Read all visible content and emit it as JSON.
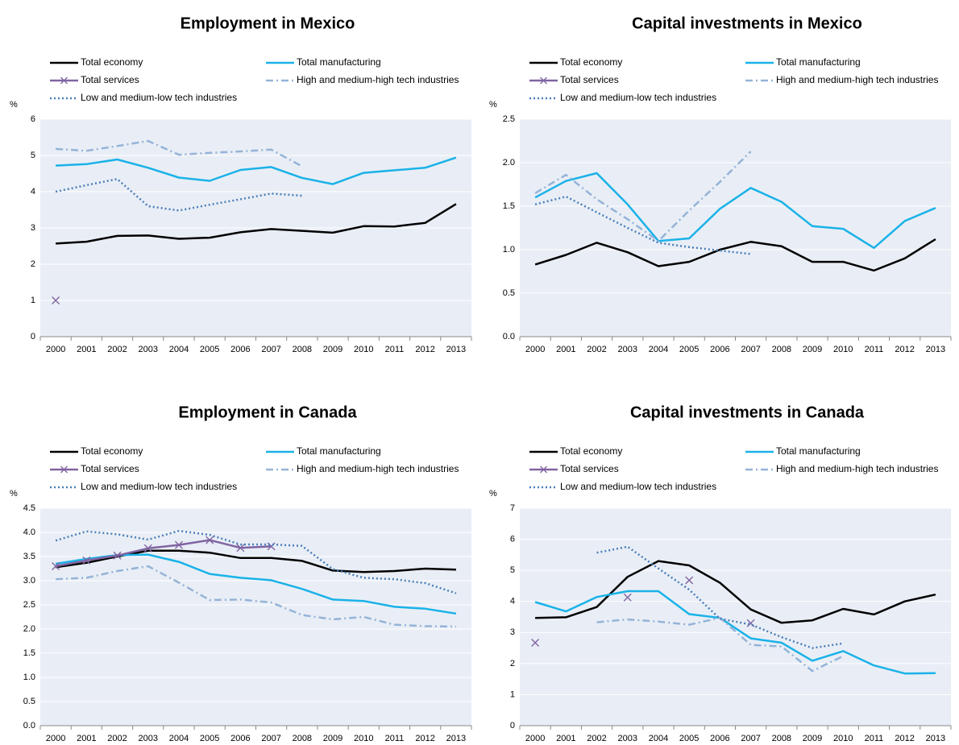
{
  "chart_data": [
    {
      "type": "line",
      "title": "Employment in Mexico",
      "y_label": "%",
      "categories": [
        "2000",
        "2001",
        "2002",
        "2003",
        "2004",
        "2005",
        "2006",
        "2007",
        "2008",
        "2009",
        "2010",
        "2011",
        "2012",
        "2013"
      ],
      "ylim": [
        0,
        6
      ],
      "yticks": [
        0,
        1,
        2,
        3,
        4,
        5,
        6
      ],
      "grid": true,
      "series": [
        {
          "name": "Total economy",
          "color": "#000000",
          "dash": "solid",
          "values": [
            2.57,
            2.62,
            2.78,
            2.79,
            2.7,
            2.73,
            2.88,
            2.97,
            2.92,
            2.87,
            3.05,
            3.04,
            3.14,
            3.66
          ]
        },
        {
          "name": "Total manufacturing",
          "color": "#1ab2e8",
          "dash": "solid",
          "values": [
            4.72,
            4.76,
            4.89,
            4.66,
            4.39,
            4.3,
            4.6,
            4.68,
            4.38,
            4.21,
            4.52,
            4.59,
            4.66,
            4.94
          ]
        },
        {
          "name": "Total services",
          "color": "#8064a2",
          "dash": "solid",
          "marker": "x",
          "values": [
            1.0,
            null,
            null,
            null,
            null,
            null,
            null,
            null,
            null,
            null,
            null,
            null,
            null,
            null
          ]
        },
        {
          "name": "High and medium-high tech industries",
          "color": "#95b3d7",
          "dash": "dashdot",
          "values": [
            5.18,
            5.13,
            5.26,
            5.4,
            5.02,
            5.07,
            5.11,
            5.16,
            4.7,
            null,
            null,
            null,
            null,
            null
          ]
        },
        {
          "name": "Low and medium-low tech industries",
          "color": "#4a7ebb",
          "dash": "dot",
          "values": [
            4.0,
            4.18,
            4.35,
            3.6,
            3.48,
            3.64,
            3.79,
            3.95,
            3.89,
            null,
            null,
            null,
            null,
            null
          ]
        }
      ]
    },
    {
      "type": "line",
      "title": "Capital investments in Mexico",
      "y_label": "%",
      "categories": [
        "2000",
        "2001",
        "2002",
        "2003",
        "2004",
        "2005",
        "2006",
        "2007",
        "2008",
        "2009",
        "2010",
        "2011",
        "2012",
        "2013"
      ],
      "ylim": [
        0,
        2.5
      ],
      "yticks": [
        {
          "value": 0,
          "label": "0.0"
        },
        0.5,
        {
          "value": 1,
          "label": "1.0"
        },
        1.5,
        {
          "value": 2,
          "label": "2.0"
        },
        2.5
      ],
      "grid": true,
      "series": [
        {
          "name": "Total economy",
          "color": "#000000",
          "dash": "solid",
          "values": [
            0.83,
            0.94,
            1.08,
            0.97,
            0.81,
            0.86,
            1.0,
            1.09,
            1.04,
            0.86,
            0.86,
            0.76,
            0.9,
            1.12
          ]
        },
        {
          "name": "Total manufacturing",
          "color": "#1ab2e8",
          "dash": "solid",
          "values": [
            1.6,
            1.79,
            1.88,
            1.52,
            1.1,
            1.13,
            1.47,
            1.71,
            1.55,
            1.27,
            1.24,
            1.02,
            1.33,
            1.48
          ]
        },
        {
          "name": "Total services",
          "color": "#8064a2",
          "dash": "solid",
          "marker": "x",
          "values": [
            null,
            null,
            null,
            null,
            null,
            null,
            null,
            null,
            null,
            null,
            null,
            null,
            null,
            null
          ]
        },
        {
          "name": "High and medium-high tech industries",
          "color": "#95b3d7",
          "dash": "dashdot",
          "values": [
            1.65,
            1.86,
            1.58,
            1.35,
            1.1,
            1.45,
            1.78,
            2.13,
            null,
            null,
            null,
            null,
            null,
            null
          ]
        },
        {
          "name": "Low and medium-low tech industries",
          "color": "#4a7ebb",
          "dash": "dot",
          "values": [
            1.52,
            1.61,
            1.43,
            1.25,
            1.08,
            1.03,
            0.99,
            0.95,
            null,
            null,
            null,
            null,
            null,
            null
          ]
        }
      ]
    },
    {
      "type": "line",
      "title": "Employment in Canada",
      "y_label": "%",
      "categories": [
        "2000",
        "2001",
        "2002",
        "2003",
        "2004",
        "2005",
        "2006",
        "2007",
        "2008",
        "2009",
        "2010",
        "2011",
        "2012",
        "2013"
      ],
      "ylim": [
        0,
        4.5
      ],
      "yticks": [
        {
          "value": 0,
          "label": "0.0"
        },
        0.5,
        {
          "value": 1,
          "label": "1.0"
        },
        1.5,
        {
          "value": 2,
          "label": "2.0"
        },
        2.5,
        {
          "value": 3,
          "label": "3.0"
        },
        3.5,
        {
          "value": 4,
          "label": "4.0"
        },
        4.5
      ],
      "grid": true,
      "series": [
        {
          "name": "Total economy",
          "color": "#000000",
          "dash": "solid",
          "values": [
            3.28,
            3.37,
            3.5,
            3.62,
            3.62,
            3.58,
            3.47,
            3.47,
            3.41,
            3.21,
            3.18,
            3.2,
            3.25,
            3.23
          ]
        },
        {
          "name": "Total manufacturing",
          "color": "#1ab2e8",
          "dash": "solid",
          "values": [
            3.35,
            3.45,
            3.53,
            3.54,
            3.39,
            3.14,
            3.06,
            3.01,
            2.83,
            2.61,
            2.58,
            2.46,
            2.42,
            2.32
          ]
        },
        {
          "name": "Total services",
          "color": "#8064a2",
          "dash": "solid",
          "marker": "x",
          "values": [
            3.3,
            3.42,
            3.52,
            3.67,
            3.74,
            3.84,
            3.68,
            3.71,
            null,
            null,
            null,
            null,
            null,
            null
          ]
        },
        {
          "name": "High and medium-high tech industries",
          "color": "#95b3d7",
          "dash": "dashdot",
          "values": [
            3.03,
            3.06,
            3.2,
            3.3,
            2.96,
            2.6,
            2.61,
            2.55,
            2.29,
            2.2,
            2.25,
            2.09,
            2.06,
            2.05
          ]
        },
        {
          "name": "Low and medium-low tech industries",
          "color": "#4a7ebb",
          "dash": "dot",
          "values": [
            3.83,
            4.02,
            3.96,
            3.85,
            4.03,
            3.95,
            3.75,
            3.75,
            3.72,
            3.24,
            3.06,
            3.03,
            2.95,
            2.74
          ]
        }
      ]
    },
    {
      "type": "line",
      "title": "Capital investments in Canada",
      "y_label": "%",
      "categories": [
        "2000",
        "2001",
        "2002",
        "2003",
        "2004",
        "2005",
        "2006",
        "2007",
        "2008",
        "2009",
        "2010",
        "2011",
        "2012",
        "2013"
      ],
      "ylim": [
        0,
        7
      ],
      "yticks": [
        0,
        1,
        2,
        3,
        4,
        5,
        6,
        7
      ],
      "grid": true,
      "series": [
        {
          "name": "Total economy",
          "color": "#000000",
          "dash": "solid",
          "values": [
            3.47,
            3.49,
            3.82,
            4.79,
            5.3,
            5.16,
            4.6,
            3.74,
            3.31,
            3.39,
            3.76,
            3.58,
            4.0,
            4.22
          ]
        },
        {
          "name": "Total manufacturing",
          "color": "#1ab2e8",
          "dash": "solid",
          "values": [
            3.98,
            3.68,
            4.14,
            4.33,
            4.33,
            3.59,
            3.47,
            2.81,
            2.67,
            2.09,
            2.4,
            1.94,
            1.68,
            1.69
          ]
        },
        {
          "name": "Total services",
          "color": "#8064a2",
          "dash": "solid",
          "marker": "x",
          "values": [
            2.67,
            null,
            null,
            4.13,
            null,
            4.68,
            null,
            3.3,
            null,
            null,
            null,
            null,
            null,
            null
          ]
        },
        {
          "name": "High and medium-high tech industries",
          "color": "#95b3d7",
          "dash": "dashdot",
          "values": [
            null,
            null,
            3.33,
            3.42,
            3.35,
            3.25,
            3.47,
            2.6,
            2.55,
            1.76,
            2.24,
            null,
            null,
            null
          ]
        },
        {
          "name": "Low and medium-low tech industries",
          "color": "#4a7ebb",
          "dash": "dot",
          "values": [
            null,
            null,
            5.57,
            5.76,
            5.06,
            4.38,
            3.44,
            3.26,
            2.85,
            2.5,
            2.65,
            null,
            null,
            null
          ]
        }
      ]
    }
  ]
}
